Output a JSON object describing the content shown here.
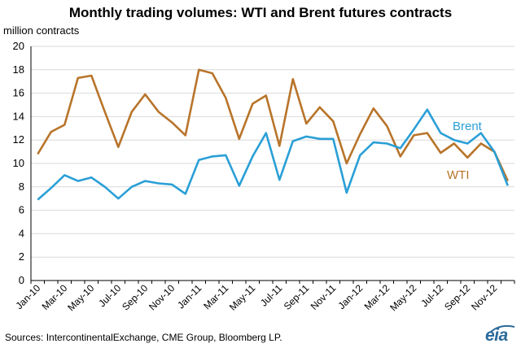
{
  "chart_data": {
    "type": "line",
    "title": "Monthly trading volumes:  WTI and Brent futures contracts",
    "ylabel": "million contracts",
    "xlabel": "",
    "ylim": [
      0,
      20
    ],
    "yticks": [
      "0",
      "2",
      "4",
      "6",
      "8",
      "10",
      "12",
      "14",
      "16",
      "18",
      "20"
    ],
    "x": [
      "Jan-10",
      "Feb-10",
      "Mar-10",
      "Apr-10",
      "May-10",
      "Jun-10",
      "Jul-10",
      "Aug-10",
      "Sep-10",
      "Oct-10",
      "Nov-10",
      "Dec-10",
      "Jan-11",
      "Feb-11",
      "Mar-11",
      "Apr-11",
      "May-11",
      "Jun-11",
      "Jul-11",
      "Aug-11",
      "Sep-11",
      "Oct-11",
      "Nov-11",
      "Dec-11",
      "Jan-12",
      "Feb-12",
      "Mar-12",
      "Apr-12",
      "May-12",
      "Jun-12",
      "Jul-12",
      "Aug-12",
      "Sep-12",
      "Oct-12",
      "Nov-12",
      "Dec-12"
    ],
    "xtick_labels": [
      "Jan-10",
      "Mar-10",
      "May-10",
      "Jul-10",
      "Sep-10",
      "Nov-10",
      "Jan-11",
      "Mar-11",
      "May-11",
      "Jul-11",
      "Sep-11",
      "Nov-11",
      "Jan-12",
      "Mar-12",
      "May-12",
      "Jul-12",
      "Sep-12",
      "Nov-12"
    ],
    "grid": true,
    "series": [
      {
        "name": "WTI",
        "color": "#b8742a",
        "values": [
          10.8,
          12.7,
          13.3,
          17.3,
          17.5,
          14.4,
          11.4,
          14.4,
          15.9,
          14.4,
          13.5,
          12.4,
          18.0,
          17.7,
          15.6,
          12.1,
          15.1,
          15.8,
          11.5,
          17.2,
          13.4,
          14.8,
          13.6,
          10.0,
          12.5,
          14.7,
          13.2,
          10.6,
          12.4,
          12.6,
          10.9,
          11.7,
          10.5,
          11.7,
          11.0,
          8.5
        ]
      },
      {
        "name": "Brent",
        "color": "#2a9fd6",
        "values": [
          6.9,
          7.9,
          9.0,
          8.5,
          8.8,
          8.0,
          7.0,
          8.0,
          8.5,
          8.3,
          8.2,
          7.4,
          10.3,
          10.6,
          10.7,
          8.1,
          10.6,
          12.6,
          8.6,
          11.9,
          12.3,
          12.1,
          12.1,
          7.5,
          10.7,
          11.8,
          11.7,
          11.3,
          12.9,
          14.6,
          12.6,
          12.0,
          11.7,
          12.6,
          11.0,
          8.1
        ]
      }
    ]
  },
  "source": "Sources:  IntercontinentalExchange, CME Group, Bloomberg LP.",
  "logo_text": "eia"
}
